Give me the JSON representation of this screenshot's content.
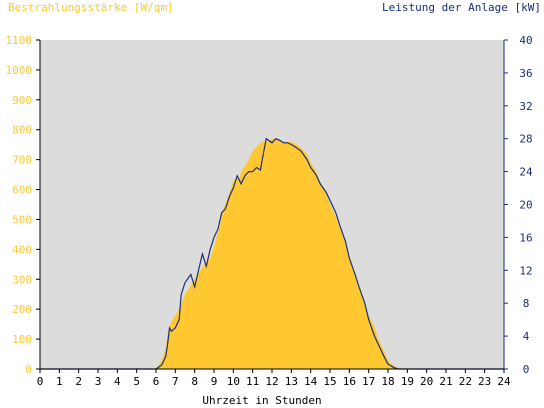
{
  "chart_data": {
    "type": "area",
    "title_left": "Bestrahlungsstärke [W/qm]",
    "title_right": "Leistung der Anlage [kW]",
    "xlabel": "Uhrzeit in Stunden",
    "x_ticks": [
      "0",
      "1",
      "2",
      "3",
      "4",
      "5",
      "6",
      "7",
      "8",
      "9",
      "10",
      "11",
      "12",
      "13",
      "14",
      "15",
      "16",
      "17",
      "18",
      "19",
      "20",
      "21",
      "22",
      "23",
      "24"
    ],
    "xlim": [
      0,
      24
    ],
    "y_left": {
      "lim": [
        0,
        1100
      ],
      "ticks": [
        "0",
        "100",
        "200",
        "300",
        "400",
        "500",
        "600",
        "700",
        "800",
        "900",
        "1000",
        "1100"
      ]
    },
    "y_right": {
      "lim": [
        0,
        40
      ],
      "ticks": [
        "0",
        "4",
        "8",
        "12",
        "16",
        "20",
        "24",
        "28",
        "32",
        "36",
        "40"
      ]
    },
    "grid": false,
    "colors": {
      "background": "#dcdcdc",
      "irradiance_fill": "#ffc830",
      "power_line": "#1a2e7a",
      "left_axis_text": "#ffc830",
      "right_axis_text": "#1a2e7a",
      "x_axis_text": "#000000"
    },
    "series": [
      {
        "axis": "left",
        "x": [
          0,
          6.0,
          6.3,
          6.5,
          6.6,
          6.8,
          7.0,
          7.2,
          7.5,
          7.8,
          8.0,
          8.3,
          8.5,
          8.8,
          9.0,
          9.3,
          9.5,
          9.8,
          10.0,
          10.3,
          10.5,
          10.8,
          11.0,
          11.3,
          11.5,
          11.8,
          12.0,
          12.3,
          12.5,
          12.8,
          13.0,
          13.3,
          13.5,
          13.8,
          14.0,
          14.3,
          14.5,
          14.8,
          15.0,
          15.3,
          15.5,
          15.8,
          16.0,
          16.3,
          16.5,
          16.8,
          17.0,
          17.3,
          17.5,
          17.8,
          18.0,
          18.3,
          18.5,
          18.8,
          19.0,
          24
        ],
        "values": [
          0,
          0,
          30,
          70,
          120,
          160,
          180,
          200,
          250,
          280,
          300,
          330,
          350,
          370,
          410,
          480,
          540,
          590,
          630,
          640,
          670,
          700,
          730,
          750,
          760,
          760,
          770,
          770,
          760,
          760,
          760,
          750,
          740,
          720,
          690,
          660,
          620,
          590,
          550,
          510,
          470,
          420,
          370,
          320,
          270,
          220,
          180,
          140,
          100,
          60,
          30,
          10,
          5,
          0,
          0,
          0
        ]
      },
      {
        "axis": "right",
        "x": [
          0,
          6.0,
          6.3,
          6.5,
          6.6,
          6.7,
          6.8,
          7.0,
          7.2,
          7.3,
          7.5,
          7.8,
          8.0,
          8.2,
          8.4,
          8.6,
          8.8,
          9.0,
          9.2,
          9.4,
          9.6,
          9.8,
          10.0,
          10.2,
          10.4,
          10.6,
          10.8,
          11.0,
          11.2,
          11.4,
          11.5,
          11.7,
          12.0,
          12.2,
          12.4,
          12.6,
          12.8,
          13.0,
          13.2,
          13.5,
          13.8,
          14.0,
          14.3,
          14.5,
          14.8,
          15.0,
          15.3,
          15.5,
          15.8,
          16.0,
          16.3,
          16.5,
          16.8,
          17.0,
          17.3,
          17.5,
          17.8,
          18.0,
          18.3,
          18.5,
          18.7,
          19.0,
          24
        ],
        "values": [
          0,
          0,
          0.5,
          1.5,
          3,
          5,
          4.6,
          5,
          6,
          9,
          10.5,
          11.5,
          10,
          12,
          14,
          12.5,
          14.5,
          16,
          17,
          19,
          19.5,
          21,
          22,
          23.5,
          22.5,
          23.5,
          24,
          24,
          24.5,
          24.2,
          25.5,
          28,
          27.5,
          28,
          27.8,
          27.5,
          27.5,
          27.3,
          27,
          26.5,
          25.5,
          24.5,
          23.5,
          22.5,
          21.5,
          20.5,
          19,
          17.5,
          15.5,
          13.5,
          11.5,
          10,
          8,
          6,
          4,
          3,
          1.5,
          0.6,
          0.2,
          0,
          0,
          0,
          0
        ]
      }
    ]
  }
}
